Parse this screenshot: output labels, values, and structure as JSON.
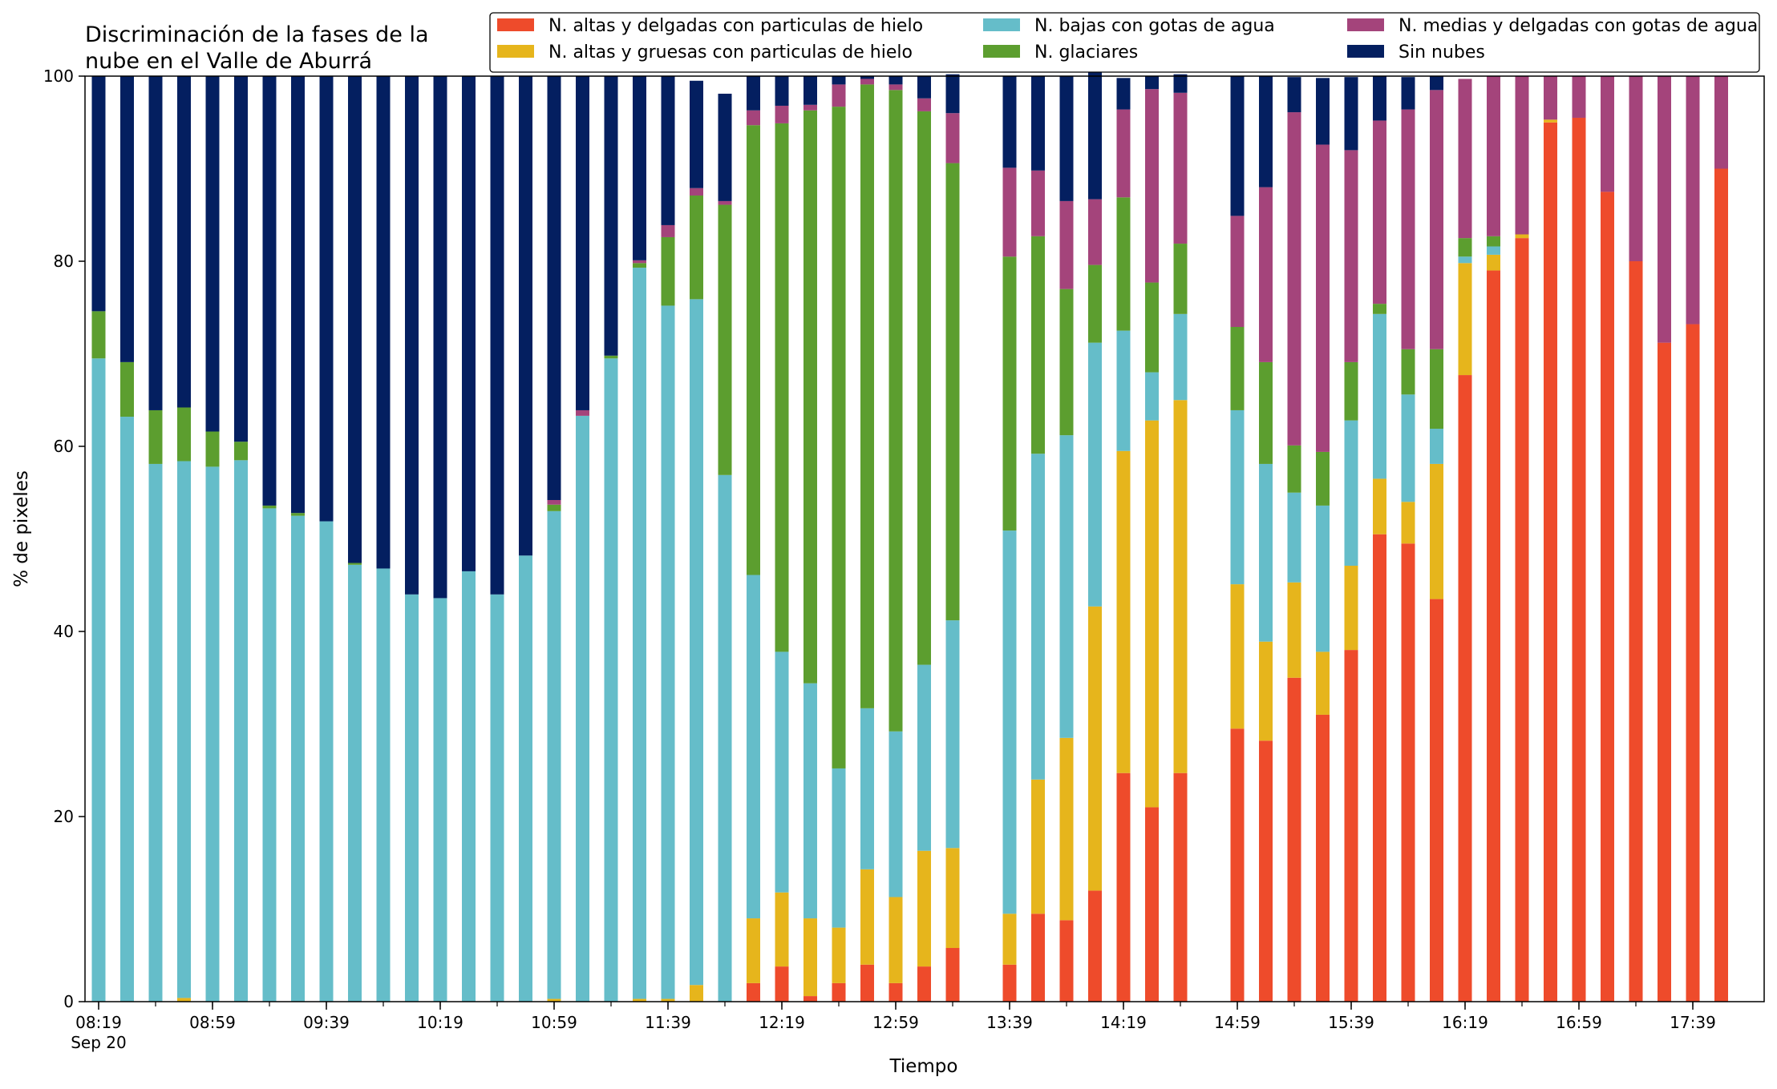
{
  "chart_data": {
    "type": "bar",
    "stacked": true,
    "title": "Discriminación de la fases de la\nnube en el Valle de Aburrá",
    "xlabel": "Tiempo",
    "ylabel": "% de pixeles",
    "ylim": [
      0,
      100
    ],
    "yticks": [
      0,
      20,
      40,
      60,
      80,
      100
    ],
    "xtick_labels": [
      "08:19",
      "08:59",
      "09:39",
      "10:19",
      "10:59",
      "11:39",
      "12:19",
      "12:59",
      "13:39",
      "14:19",
      "14:59",
      "15:39",
      "16:19",
      "16:59",
      "17:39"
    ],
    "xtick_sublabel": "Sep 20",
    "legend_position": "top-right",
    "grid": false,
    "slot_start": "08:19",
    "slot_interval_minutes": 10,
    "slots": [
      "08:19",
      "08:29",
      "08:39",
      "08:49",
      "08:59",
      "09:09",
      "09:19",
      "09:29",
      "09:39",
      "09:49",
      "09:59",
      "10:09",
      "10:19",
      "10:29",
      "10:39",
      "10:49",
      "10:59",
      "11:09",
      "11:19",
      "11:29",
      "11:39",
      "11:49",
      "11:59",
      "12:09",
      "12:19",
      "12:29",
      "12:39",
      "12:49",
      "12:59",
      "13:09",
      "13:19",
      "13:29",
      "13:39",
      "13:49",
      "13:59",
      "14:09",
      "14:19",
      "14:29",
      "14:39",
      "14:49",
      "14:59",
      "15:09",
      "15:19",
      "15:29",
      "15:39",
      "15:49",
      "15:59",
      "16:09",
      "16:19",
      "16:29",
      "16:39",
      "16:49",
      "16:59",
      "17:09",
      "17:19",
      "17:29",
      "17:39",
      "17:49"
    ],
    "series": [
      {
        "name": "N. altas y delgadas con particulas de hielo",
        "color": "#ee4b2b",
        "values": [
          0,
          0,
          0,
          0,
          0,
          0,
          0,
          0,
          0,
          0,
          0,
          0,
          0,
          0,
          0,
          0,
          0,
          0,
          0,
          0,
          0,
          0,
          0,
          2,
          3.8,
          0.6,
          2,
          4,
          2,
          3.8,
          5.8,
          null,
          4,
          9.5,
          8.8,
          12,
          24.7,
          21,
          24.7,
          null,
          29.5,
          28.2,
          35,
          31,
          38,
          50.5,
          49.5,
          43.5,
          67.7,
          79,
          82.5,
          95,
          95.5,
          87.5,
          80,
          71.2,
          73.2,
          90
        ]
      },
      {
        "name": "N. altas y gruesas con particulas de hielo",
        "color": "#e6b51c",
        "values": [
          0,
          0,
          0,
          0.4,
          0,
          0,
          0,
          0,
          0,
          0,
          0,
          0,
          0,
          0,
          0,
          0,
          0.3,
          0,
          0,
          0.3,
          0.3,
          1.8,
          0,
          7,
          8,
          8.4,
          6,
          10.3,
          9.3,
          12.5,
          10.8,
          null,
          5.5,
          14.5,
          19.7,
          30.7,
          34.8,
          41.8,
          40.3,
          null,
          15.6,
          10.7,
          10.3,
          6.8,
          9.1,
          6,
          4.5,
          14.6,
          12.1,
          1.7,
          0.4,
          0.3,
          0,
          0,
          0,
          0,
          0,
          0
        ]
      },
      {
        "name": "N. bajas con gotas de agua",
        "color": "#65bdc9",
        "values": [
          69.5,
          63.2,
          58.1,
          58,
          57.8,
          58.5,
          53.3,
          52.5,
          51.9,
          47.2,
          46.8,
          44,
          43.6,
          46.5,
          44,
          48.2,
          52.7,
          63.3,
          69.5,
          79,
          74.9,
          74.1,
          56.9,
          37.1,
          26,
          25.4,
          17.2,
          17.4,
          17.9,
          20.1,
          24.6,
          null,
          41.4,
          35.2,
          32.7,
          28.5,
          13,
          5.2,
          9.3,
          null,
          18.8,
          19.2,
          9.7,
          15.8,
          15.7,
          17.8,
          11.6,
          3.8,
          0.7,
          0.9,
          0,
          0,
          0,
          0,
          0,
          0,
          0,
          0
        ]
      },
      {
        "name": "N. glaciares",
        "color": "#5c9e2f",
        "values": [
          5.1,
          5.9,
          5.8,
          5.8,
          3.8,
          2,
          0.3,
          0.3,
          0,
          0.2,
          0,
          0,
          0,
          0,
          0,
          0,
          0.7,
          0,
          0.3,
          0.5,
          7.4,
          11.2,
          29.2,
          48.6,
          57.1,
          61.9,
          71.5,
          67.4,
          69.3,
          59.8,
          49.4,
          null,
          29.6,
          23.5,
          15.8,
          8.4,
          14.4,
          9.7,
          7.6,
          null,
          9,
          11,
          5.1,
          5.8,
          6.3,
          1.1,
          4.9,
          8.6,
          2,
          1.1,
          0,
          0,
          0,
          0,
          0,
          0,
          0,
          0
        ]
      },
      {
        "name": "N. medias y delgadas con gotas de agua",
        "color": "#a4447b",
        "values": [
          0,
          0,
          0,
          0,
          0,
          0,
          0,
          0,
          0,
          0,
          0,
          0,
          0,
          0,
          0,
          0,
          0.5,
          0.6,
          0,
          0.3,
          1.3,
          0.8,
          0.4,
          1.6,
          1.9,
          0.6,
          2.4,
          0.6,
          0.6,
          1.4,
          5.4,
          null,
          9.6,
          7.1,
          9.5,
          7.1,
          9.5,
          20.9,
          16.3,
          null,
          12,
          18.9,
          36,
          33.2,
          22.9,
          19.8,
          25.9,
          28,
          17.2,
          17.3,
          17.1,
          4.7,
          4.5,
          12.5,
          20,
          28.8,
          26.8,
          10
        ]
      },
      {
        "name": "Sin nubes",
        "color": "#041f60",
        "values": [
          25.4,
          30.9,
          36.1,
          35.8,
          38.4,
          39.5,
          46.4,
          47.2,
          48.1,
          52.6,
          53.2,
          56,
          56.4,
          53.5,
          56,
          51.8,
          45.8,
          36.1,
          30.2,
          19.9,
          16.1,
          11.6,
          11.6,
          3.7,
          3.2,
          3.1,
          0.9,
          0.3,
          0.9,
          2.4,
          4.2,
          null,
          9.9,
          10.2,
          13.5,
          13.7,
          3.4,
          1.4,
          2,
          null,
          15.1,
          12,
          3.8,
          7.2,
          7.9,
          4.8,
          3.5,
          1.5,
          0,
          0,
          0,
          0,
          0,
          0,
          0,
          0,
          0,
          0
        ]
      }
    ]
  }
}
